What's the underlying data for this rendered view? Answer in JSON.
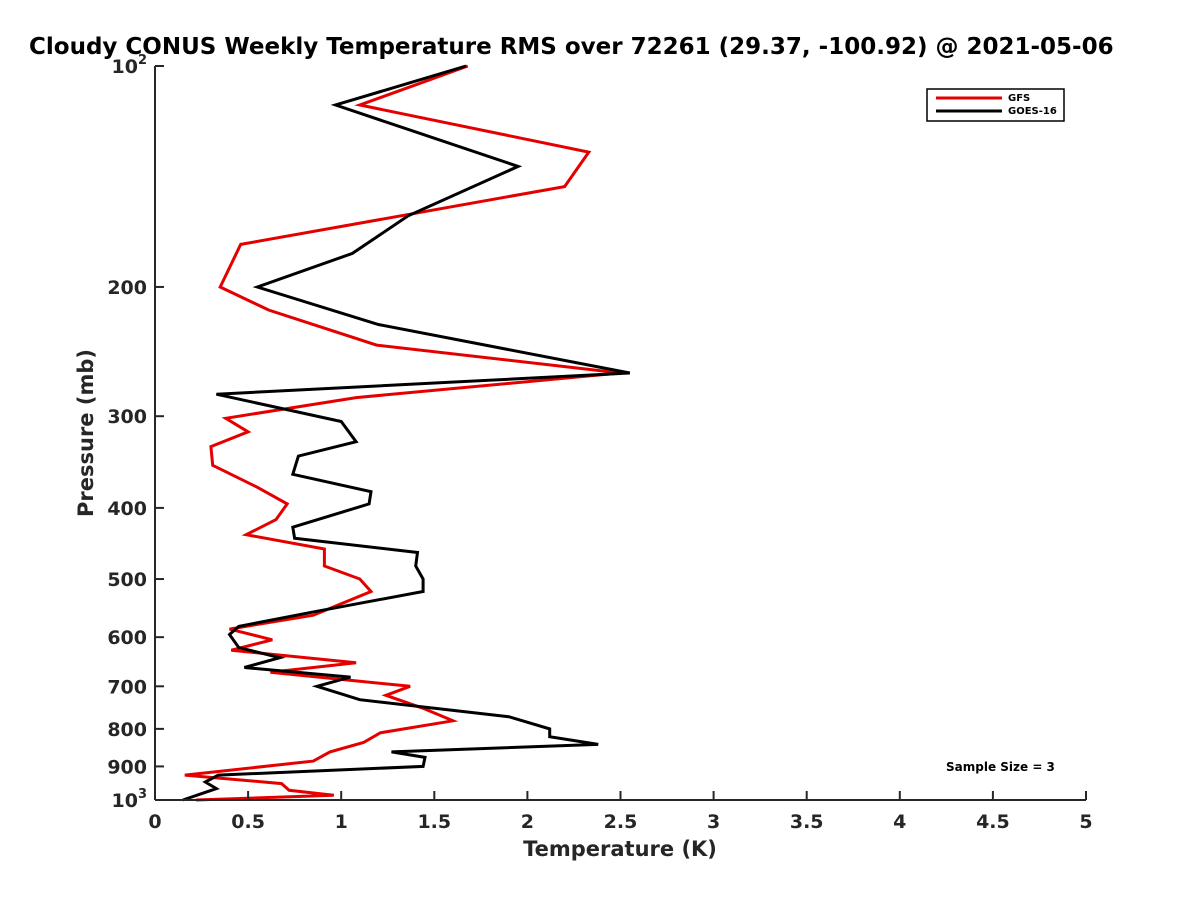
{
  "chart_data": {
    "type": "line",
    "title": "Cloudy CONUS Weekly Temperature RMS over 72261 (29.37, -100.92) @ 2021-05-06",
    "xlabel": "Temperature (K)",
    "ylabel": "Pressure (mb)",
    "xlim": [
      0,
      5
    ],
    "ylim": [
      100,
      1000
    ],
    "yscale": "log",
    "y_reversed": true,
    "grid": false,
    "legend_position": "top-right",
    "x_ticks": [
      {
        "value": 0,
        "label": "0"
      },
      {
        "value": 0.5,
        "label": "0.5"
      },
      {
        "value": 1,
        "label": "1"
      },
      {
        "value": 1.5,
        "label": "1.5"
      },
      {
        "value": 2,
        "label": "2"
      },
      {
        "value": 2.5,
        "label": "2.5"
      },
      {
        "value": 3,
        "label": "3"
      },
      {
        "value": 3.5,
        "label": "3.5"
      },
      {
        "value": 4,
        "label": "4"
      },
      {
        "value": 4.5,
        "label": "4.5"
      },
      {
        "value": 5,
        "label": "5"
      }
    ],
    "y_ticks": [
      {
        "value": 100,
        "base": "10",
        "exp": "2"
      },
      {
        "value": 200,
        "label": "200"
      },
      {
        "value": 300,
        "label": "300"
      },
      {
        "value": 400,
        "label": "400"
      },
      {
        "value": 500,
        "label": "500"
      },
      {
        "value": 600,
        "label": "600"
      },
      {
        "value": 700,
        "label": "700"
      },
      {
        "value": 800,
        "label": "800"
      },
      {
        "value": 900,
        "label": "900"
      },
      {
        "value": 1000,
        "base": "10",
        "exp": "3"
      }
    ],
    "series": [
      {
        "name": "GFS",
        "color": "#e50000",
        "points": [
          [
            1.68,
            100
          ],
          [
            1.1,
            113
          ],
          [
            2.33,
            131
          ],
          [
            2.2,
            146
          ],
          [
            0.46,
            175
          ],
          [
            0.35,
            200
          ],
          [
            0.61,
            215
          ],
          [
            1.19,
            240
          ],
          [
            2.5,
            262
          ],
          [
            1.08,
            283
          ],
          [
            0.38,
            302
          ],
          [
            0.5,
            315
          ],
          [
            0.3,
            330
          ],
          [
            0.31,
            350
          ],
          [
            0.55,
            375
          ],
          [
            0.71,
            395
          ],
          [
            0.65,
            415
          ],
          [
            0.49,
            435
          ],
          [
            0.91,
            455
          ],
          [
            0.91,
            480
          ],
          [
            1.1,
            500
          ],
          [
            1.16,
            520
          ],
          [
            0.85,
            560
          ],
          [
            0.4,
            585
          ],
          [
            0.63,
            605
          ],
          [
            0.41,
            625
          ],
          [
            1.08,
            650
          ],
          [
            0.62,
            670
          ],
          [
            1.37,
            700
          ],
          [
            1.24,
            720
          ],
          [
            1.44,
            750
          ],
          [
            1.6,
            780
          ],
          [
            1.21,
            810
          ],
          [
            1.12,
            835
          ],
          [
            0.94,
            860
          ],
          [
            0.85,
            885
          ],
          [
            0.16,
            925
          ],
          [
            0.68,
            950
          ],
          [
            0.72,
            970
          ],
          [
            0.96,
            985
          ],
          [
            0.22,
            1000
          ]
        ]
      },
      {
        "name": "GOES-16",
        "color": "#000000",
        "points": [
          [
            1.67,
            100
          ],
          [
            0.97,
            113
          ],
          [
            1.95,
            137
          ],
          [
            1.36,
            160
          ],
          [
            1.06,
            180
          ],
          [
            0.55,
            200
          ],
          [
            1.2,
            225
          ],
          [
            2.55,
            262
          ],
          [
            0.33,
            280
          ],
          [
            1.0,
            305
          ],
          [
            1.08,
            325
          ],
          [
            0.77,
            340
          ],
          [
            0.74,
            360
          ],
          [
            1.16,
            380
          ],
          [
            1.15,
            395
          ],
          [
            0.74,
            425
          ],
          [
            0.75,
            440
          ],
          [
            1.41,
            460
          ],
          [
            1.4,
            480
          ],
          [
            1.44,
            500
          ],
          [
            1.44,
            520
          ],
          [
            0.84,
            555
          ],
          [
            0.45,
            580
          ],
          [
            0.4,
            595
          ],
          [
            0.45,
            620
          ],
          [
            0.67,
            640
          ],
          [
            0.48,
            660
          ],
          [
            1.05,
            680
          ],
          [
            0.87,
            700
          ],
          [
            1.1,
            730
          ],
          [
            1.9,
            770
          ],
          [
            2.12,
            800
          ],
          [
            2.12,
            820
          ],
          [
            2.38,
            840
          ],
          [
            1.27,
            860
          ],
          [
            1.45,
            875
          ],
          [
            1.44,
            900
          ],
          [
            0.34,
            925
          ],
          [
            0.27,
            945
          ],
          [
            0.33,
            965
          ],
          [
            0.15,
            1000
          ]
        ]
      }
    ],
    "annotation": "Sample Size = 3"
  }
}
